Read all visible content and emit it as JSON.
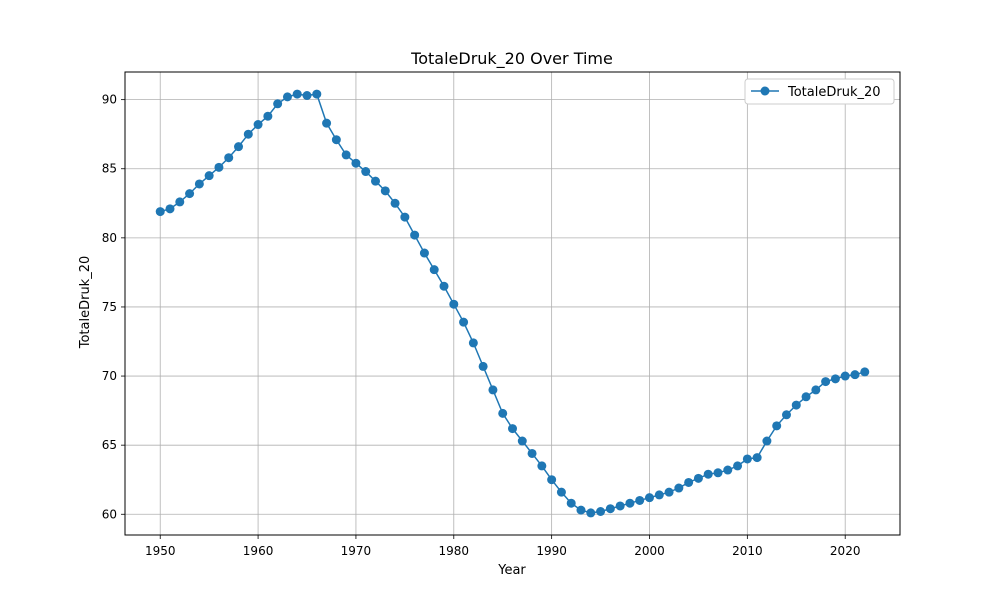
{
  "chart_data": {
    "type": "line",
    "title": "TotaleDruk_20 Over Time",
    "xlabel": "Year",
    "ylabel": "TotaleDruk_20",
    "xlim": [
      1946.4,
      2025.6
    ],
    "ylim": [
      58.5,
      92
    ],
    "x_ticks": [
      1950,
      1960,
      1970,
      1980,
      1990,
      2000,
      2010,
      2020
    ],
    "y_ticks": [
      60,
      65,
      70,
      75,
      80,
      85,
      90
    ],
    "grid": true,
    "legend_position": "top-right",
    "colors": {
      "series": "#1f77b4",
      "grid": "#b0b0b0",
      "axes": "#000000"
    },
    "series": [
      {
        "name": "TotaleDruk_20",
        "marker": "circle",
        "x": [
          1950,
          1951,
          1952,
          1953,
          1954,
          1955,
          1956,
          1957,
          1958,
          1959,
          1960,
          1961,
          1962,
          1963,
          1964,
          1965,
          1966,
          1967,
          1968,
          1969,
          1970,
          1971,
          1972,
          1973,
          1974,
          1975,
          1976,
          1977,
          1978,
          1979,
          1980,
          1981,
          1982,
          1983,
          1984,
          1985,
          1986,
          1987,
          1988,
          1989,
          1990,
          1991,
          1992,
          1993,
          1994,
          1995,
          1996,
          1997,
          1998,
          1999,
          2000,
          2001,
          2002,
          2003,
          2004,
          2005,
          2006,
          2007,
          2008,
          2009,
          2010,
          2011,
          2012,
          2013,
          2014,
          2015,
          2016,
          2017,
          2018,
          2019,
          2020,
          2021,
          2022
        ],
        "y": [
          81.9,
          82.1,
          82.6,
          83.2,
          83.9,
          84.5,
          85.1,
          85.8,
          86.6,
          87.5,
          88.2,
          88.8,
          89.7,
          90.2,
          90.4,
          90.3,
          90.4,
          88.3,
          87.1,
          86.0,
          85.4,
          84.8,
          84.1,
          83.4,
          82.5,
          81.5,
          80.2,
          78.9,
          77.7,
          76.5,
          75.2,
          73.9,
          72.4,
          70.7,
          69.0,
          67.3,
          66.2,
          65.3,
          64.4,
          63.5,
          62.5,
          61.6,
          60.8,
          60.3,
          60.1,
          60.2,
          60.4,
          60.6,
          60.8,
          61.0,
          61.2,
          61.4,
          61.6,
          61.9,
          62.3,
          62.6,
          62.9,
          63.0,
          63.2,
          63.5,
          64.0,
          64.1,
          65.3,
          66.4,
          67.2,
          67.9,
          68.5,
          69.0,
          69.6,
          69.8,
          70.0,
          70.1,
          70.3
        ]
      }
    ]
  }
}
